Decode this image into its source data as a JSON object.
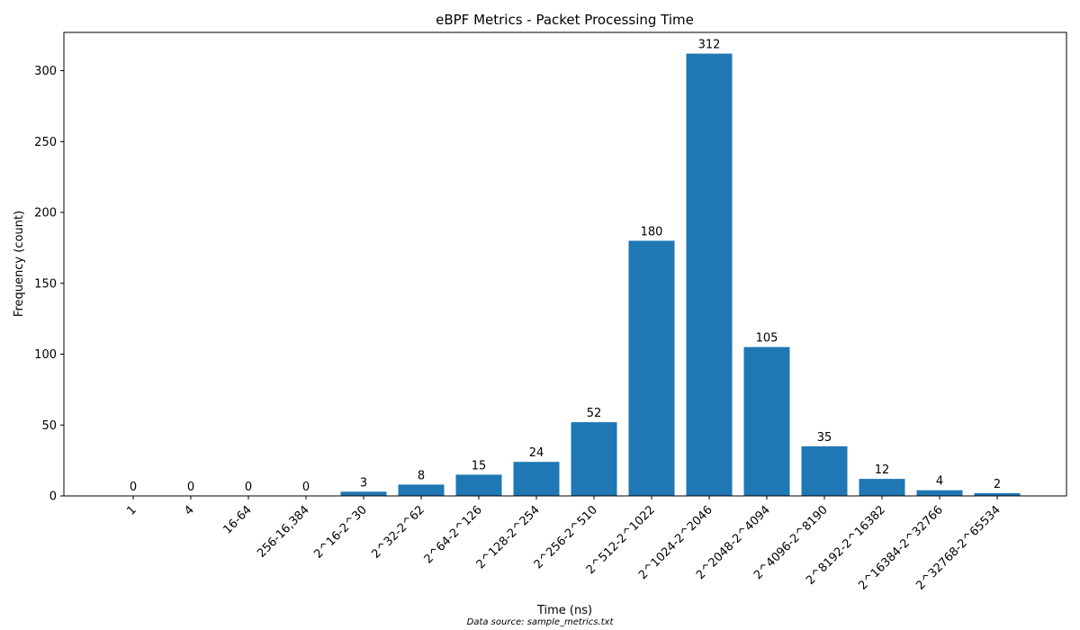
{
  "chart_data": {
    "type": "bar",
    "title": "eBPF Metrics - Packet Processing Time",
    "xlabel": "Time (ns)",
    "ylabel": "Frequency (count)",
    "categories": [
      "1",
      "4",
      "16-64",
      "256-16,384",
      "2^16-2^30",
      "2^32-2^62",
      "2^64-2^126",
      "2^128-2^254",
      "2^256-2^510",
      "2^512-2^1022",
      "2^1024-2^2046",
      "2^2048-2^4094",
      "2^4096-2^8190",
      "2^8192-2^16382",
      "2^16384-2^32766",
      "2^32768-2^65534"
    ],
    "values": [
      0,
      0,
      0,
      0,
      3,
      8,
      15,
      24,
      52,
      180,
      312,
      105,
      35,
      12,
      4,
      2
    ],
    "ylim": [
      0,
      327
    ],
    "yticks": [
      0,
      50,
      100,
      150,
      200,
      250,
      300
    ],
    "bar_color": "#1f77b4",
    "grid": false,
    "data_labels": true
  },
  "footer": {
    "source": "Data source: sample_metrics.txt"
  }
}
